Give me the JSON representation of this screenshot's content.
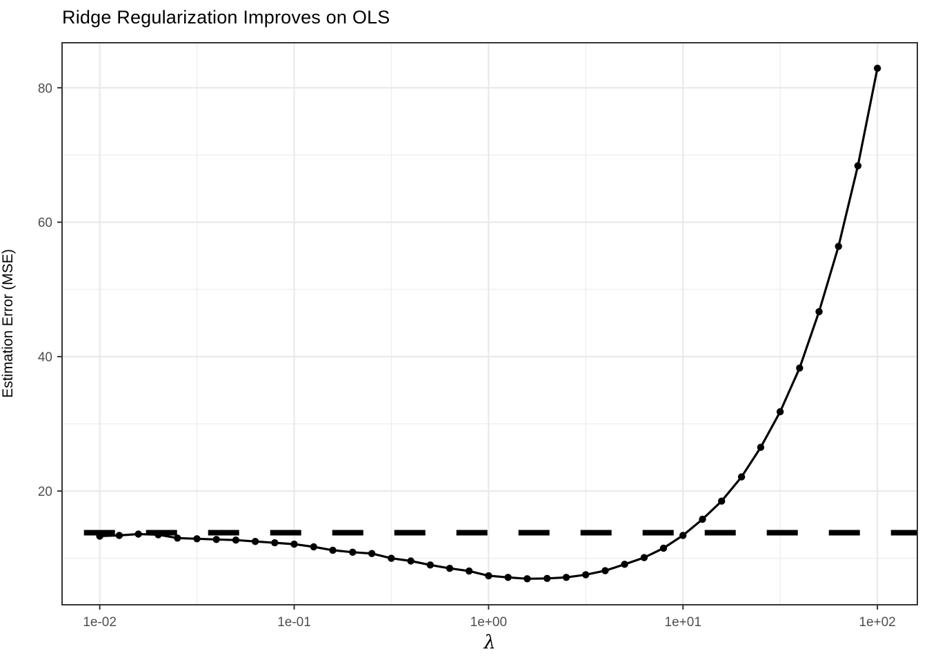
{
  "chart_data": {
    "type": "line",
    "title": "Ridge Regularization Improves on OLS",
    "xlabel": "λ",
    "ylabel": "Estimation Error (MSE)",
    "x_scale": "log10",
    "xlim": [
      0.0064,
      160.5
    ],
    "ylim": [
      3.08,
      86.7
    ],
    "grid": "on",
    "legend": "none",
    "x_ticks": [
      {
        "value": 0.01,
        "label": "1e-02"
      },
      {
        "value": 0.1,
        "label": "1e-01"
      },
      {
        "value": 1,
        "label": "1e+00"
      },
      {
        "value": 10,
        "label": "1e+01"
      },
      {
        "value": 100,
        "label": "1e+02"
      }
    ],
    "x_minor_ticks_log10": [
      -1.5,
      -0.5,
      0.5,
      1.5
    ],
    "y_ticks": [
      {
        "value": 20,
        "label": "20"
      },
      {
        "value": 40,
        "label": "40"
      },
      {
        "value": 60,
        "label": "60"
      },
      {
        "value": 80,
        "label": "80"
      }
    ],
    "y_minor_ticks": [
      10,
      30,
      50,
      70
    ],
    "series": [
      {
        "name": "ridge-mse-curve",
        "style": "solid-line-with-points",
        "x": [
          0.01,
          0.0126,
          0.0158,
          0.02,
          0.0251,
          0.0316,
          0.0398,
          0.0501,
          0.0631,
          0.0794,
          0.1,
          0.126,
          0.158,
          0.2,
          0.251,
          0.316,
          0.398,
          0.501,
          0.631,
          0.794,
          1,
          1.26,
          1.58,
          2,
          2.51,
          3.16,
          3.98,
          5.01,
          6.31,
          7.94,
          10,
          12.6,
          15.8,
          20,
          25.1,
          31.6,
          39.8,
          50.1,
          63.1,
          79.4,
          100
        ],
        "y": [
          13.3,
          13.4,
          13.6,
          13.5,
          13.0,
          12.9,
          12.8,
          12.7,
          12.5,
          12.3,
          12.1,
          11.7,
          11.2,
          10.9,
          10.7,
          10.0,
          9.6,
          9.0,
          8.5,
          8.1,
          7.4,
          7.15,
          6.95,
          7.0,
          7.15,
          7.55,
          8.15,
          9.1,
          10.1,
          11.5,
          13.4,
          15.8,
          18.5,
          22.1,
          26.5,
          31.8,
          38.3,
          46.7,
          56.4,
          68.4,
          82.9
        ]
      },
      {
        "name": "ols-baseline",
        "style": "dashed-hline",
        "y": 13.8
      }
    ],
    "colors": {
      "data": "#000000",
      "grid_major": "#e9e9e9",
      "grid_minor": "#f0f0f0",
      "panel_border": "#333333",
      "tick_mark": "#333333",
      "tick_label": "#4d4d4d",
      "background": "#ffffff"
    }
  }
}
